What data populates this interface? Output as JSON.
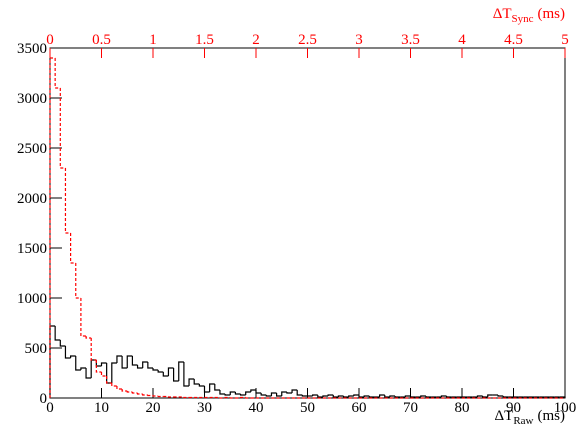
{
  "chart_data": [
    {
      "type": "histogram",
      "color": "#000000",
      "line_style": "solid",
      "x_axis": "bottom",
      "x_label": {
        "symbol": "ΔT",
        "sub": "Raw",
        "unit": "(ms)"
      },
      "xlim": [
        0,
        100
      ],
      "xticks": [
        0,
        10,
        20,
        30,
        40,
        50,
        60,
        70,
        80,
        90,
        100
      ],
      "ylim": [
        0,
        3500
      ],
      "yticks": [
        0,
        500,
        1000,
        1500,
        2000,
        2500,
        3000,
        3500
      ],
      "bins": [
        0,
        1,
        2,
        3,
        4,
        5,
        6,
        7,
        8,
        9,
        10,
        11,
        12,
        13,
        14,
        15,
        16,
        17,
        18,
        19,
        20,
        21,
        22,
        23,
        24,
        25,
        26,
        27,
        28,
        29,
        30,
        31,
        32,
        33,
        34,
        35,
        36,
        37,
        38,
        39,
        40,
        41,
        42,
        43,
        44,
        45,
        46,
        47,
        48,
        49,
        50,
        51,
        52,
        53,
        54,
        55,
        56,
        57,
        58,
        59,
        60,
        61,
        62,
        63,
        64,
        65,
        66,
        67,
        68,
        69,
        70,
        71,
        72,
        73,
        74,
        75,
        76,
        77,
        78,
        79,
        80,
        81,
        82,
        83,
        84,
        85,
        86,
        87,
        88,
        89,
        90,
        91,
        92,
        93,
        94,
        95,
        96,
        97,
        98,
        99,
        100
      ],
      "values": [
        720,
        580,
        520,
        400,
        420,
        280,
        300,
        200,
        380,
        320,
        350,
        150,
        350,
        420,
        300,
        420,
        330,
        300,
        360,
        300,
        280,
        260,
        220,
        300,
        170,
        360,
        120,
        190,
        140,
        120,
        60,
        140,
        80,
        40,
        30,
        60,
        40,
        30,
        60,
        80,
        50,
        30,
        20,
        50,
        20,
        60,
        50,
        80,
        30,
        20,
        20,
        30,
        10,
        20,
        30,
        10,
        20,
        10,
        20,
        30,
        10,
        20,
        10,
        10,
        30,
        10,
        20,
        10,
        10,
        20,
        10,
        10,
        20,
        10,
        10,
        10,
        20,
        10,
        10,
        10,
        10,
        10,
        10,
        20,
        10,
        30,
        30,
        20,
        10,
        10,
        10,
        10,
        10,
        10,
        10,
        10,
        10,
        10,
        10,
        10
      ]
    },
    {
      "type": "histogram",
      "color": "#ff0000",
      "line_style": "dashed",
      "x_axis": "top",
      "x_label": {
        "symbol": "ΔT",
        "sub": "Sync",
        "unit": "(ms)"
      },
      "xlim": [
        0,
        5
      ],
      "xticks": [
        0,
        0.5,
        1,
        1.5,
        2,
        2.5,
        3,
        3.5,
        4,
        4.5,
        5
      ],
      "bins": [
        0,
        0.05,
        0.1,
        0.15,
        0.2,
        0.25,
        0.3,
        0.35,
        0.4,
        0.45,
        0.5,
        0.55,
        0.6,
        0.65,
        0.7,
        0.75,
        0.8,
        0.85,
        0.9,
        0.95,
        1,
        1.05,
        1.1,
        1.15,
        1.2,
        1.25,
        1.3,
        1.35,
        1.4,
        1.45,
        1.5,
        1.55,
        1.6,
        1.65,
        1.7,
        1.75,
        1.8,
        1.85,
        1.9,
        1.95,
        2,
        2.05,
        2.1,
        2.15,
        2.2,
        2.25,
        2.3,
        2.35,
        2.4,
        2.45,
        2.5,
        2.55,
        2.6,
        2.65,
        2.7,
        2.75,
        2.8,
        2.85,
        2.9,
        2.95,
        3,
        3.05,
        3.1,
        3.15,
        3.2,
        3.25,
        3.3,
        3.35,
        3.4,
        3.45,
        3.5,
        3.55,
        3.6,
        3.65,
        3.7,
        3.75,
        3.8,
        3.85,
        3.9,
        3.95,
        4,
        4.05,
        4.1,
        4.15,
        4.2,
        4.25,
        4.3,
        4.35,
        4.4,
        4.45,
        4.5,
        4.55,
        4.6,
        4.65,
        4.7,
        4.75,
        4.8,
        4.85,
        4.9,
        4.95,
        5
      ],
      "values": [
        3400,
        3100,
        2300,
        1650,
        1350,
        1000,
        620,
        600,
        380,
        260,
        220,
        150,
        120,
        90,
        70,
        60,
        50,
        40,
        30,
        25,
        20,
        15,
        15,
        10,
        10,
        10,
        5,
        5,
        5,
        5,
        5,
        5,
        5,
        0,
        5,
        0,
        0,
        5,
        0,
        0,
        0,
        0,
        0,
        0,
        0,
        0,
        0,
        0,
        0,
        0,
        0,
        0,
        0,
        0,
        0,
        0,
        0,
        0,
        0,
        0,
        0,
        0,
        0,
        0,
        0,
        0,
        0,
        0,
        0,
        0,
        0,
        0,
        0,
        0,
        0,
        0,
        0,
        0,
        0,
        0,
        0,
        0,
        0,
        0,
        0,
        0,
        0,
        0,
        0,
        0,
        0,
        0,
        0,
        0,
        0,
        0,
        0,
        0,
        0,
        0
      ]
    }
  ]
}
